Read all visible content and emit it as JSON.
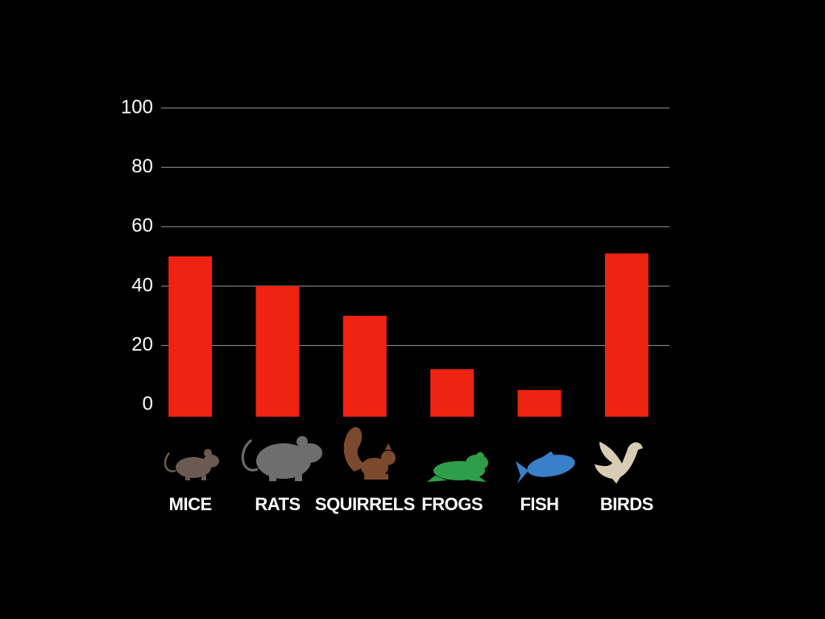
{
  "chart_data": {
    "type": "bar",
    "categories": [
      "MICE",
      "RATS",
      "SQUIRRELS",
      "FROGS",
      "FISH",
      "BIRDS"
    ],
    "values": [
      50,
      40,
      30,
      12,
      5,
      51
    ],
    "color": "#ee2311",
    "ylim": [
      -4,
      100
    ],
    "yticks": [
      0,
      20,
      40,
      60,
      80,
      100
    ],
    "grid": true
  }
}
